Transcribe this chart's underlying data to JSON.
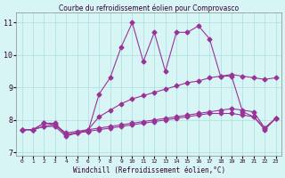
{
  "title": "Courbe du refroidissement éolien pour Comprovasco",
  "xlabel": "Windchill (Refroidissement éolien,°C)",
  "background_color": "#d8f5f5",
  "grid_color": "#aadddd",
  "line_color": "#993399",
  "xlim": [
    -0.5,
    23.5
  ],
  "ylim": [
    6.9,
    11.3
  ],
  "xticks": [
    0,
    1,
    2,
    3,
    4,
    5,
    6,
    7,
    8,
    9,
    10,
    11,
    12,
    13,
    14,
    15,
    16,
    17,
    18,
    19,
    20,
    21,
    22,
    23
  ],
  "yticks": [
    7,
    8,
    9,
    10,
    11
  ],
  "line1_x": [
    0,
    1,
    2,
    3,
    4,
    5,
    6,
    7,
    8,
    9,
    10,
    11,
    12,
    13,
    14,
    15,
    16,
    17,
    18,
    19,
    20,
    21,
    22,
    23
  ],
  "line1_y": [
    7.7,
    7.7,
    7.8,
    7.8,
    7.5,
    7.6,
    7.7,
    8.1,
    8.3,
    8.5,
    8.65,
    8.75,
    8.85,
    8.95,
    9.05,
    9.15,
    9.2,
    9.3,
    9.35,
    9.4,
    9.35,
    9.3,
    9.25,
    9.3
  ],
  "line2_x": [
    0,
    1,
    2,
    3,
    4,
    5,
    6,
    7,
    8,
    9,
    10,
    11,
    12,
    13,
    14,
    15,
    16,
    17,
    18,
    19,
    20,
    21,
    22,
    23
  ],
  "line2_y": [
    7.7,
    7.7,
    7.8,
    7.85,
    7.6,
    7.65,
    7.7,
    7.75,
    7.8,
    7.85,
    7.9,
    7.95,
    8.0,
    8.05,
    8.1,
    8.15,
    8.2,
    8.25,
    8.3,
    8.35,
    8.3,
    8.25,
    7.75,
    8.05
  ],
  "line3_x": [
    0,
    1,
    2,
    3,
    4,
    5,
    6,
    7,
    8,
    9,
    10,
    11,
    12,
    13,
    14,
    15,
    16,
    17,
    18,
    19,
    20,
    21,
    22,
    23
  ],
  "line3_y": [
    7.7,
    7.7,
    7.9,
    7.85,
    7.55,
    7.6,
    7.65,
    7.7,
    7.75,
    7.8,
    7.85,
    7.9,
    7.95,
    8.0,
    8.05,
    8.1,
    8.15,
    8.2,
    8.2,
    8.2,
    8.15,
    8.1,
    7.7,
    8.05
  ],
  "line4_x": [
    0,
    1,
    2,
    3,
    4,
    5,
    6,
    7,
    8,
    9,
    10,
    11,
    12,
    13,
    14,
    15,
    16,
    17,
    18,
    19,
    20,
    21,
    22,
    23
  ],
  "line4_y": [
    7.7,
    7.7,
    7.9,
    7.9,
    7.55,
    7.6,
    7.65,
    8.8,
    9.3,
    10.25,
    11.0,
    9.8,
    10.7,
    9.5,
    10.7,
    10.7,
    10.9,
    10.5,
    9.35,
    9.35,
    8.25,
    8.1,
    7.75,
    8.05
  ]
}
